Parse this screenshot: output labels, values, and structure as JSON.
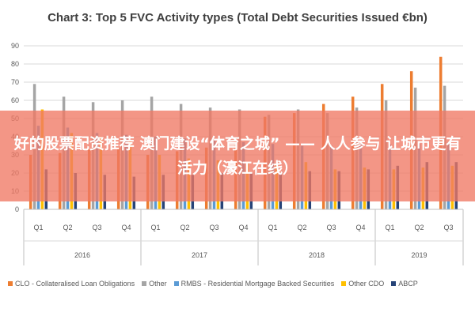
{
  "chart_data": {
    "type": "bar",
    "title": "Chart 3: Top 5 FVC Activity types (Total Debt Securities Issued €bn)",
    "xlabel": "",
    "ylabel": "",
    "ylim": [
      0,
      90
    ],
    "yticks": [
      0,
      10,
      20,
      30,
      40,
      50,
      60,
      70,
      80,
      90
    ],
    "grid": true,
    "legend_position": "bottom",
    "categories": [
      "Q1",
      "Q2",
      "Q3",
      "Q4",
      "Q1",
      "Q2",
      "Q3",
      "Q4",
      "Q1",
      "Q2",
      "Q3",
      "Q4",
      "Q1",
      "Q2",
      "Q3"
    ],
    "groups": [
      {
        "label": "2016",
        "span": 4
      },
      {
        "label": "2017",
        "span": 4
      },
      {
        "label": "2018",
        "span": 4
      },
      {
        "label": "2019",
        "span": 3
      }
    ],
    "series": [
      {
        "name": "CLO - Collateralised Loan Obligations",
        "color": "#ED7D31",
        "values": [
          30,
          31,
          33,
          34,
          30,
          32,
          34,
          35,
          51,
          53,
          58,
          62,
          69,
          76,
          84
        ]
      },
      {
        "name": "Other",
        "color": "#A5A5A5",
        "values": [
          69,
          62,
          59,
          60,
          62,
          58,
          56,
          55,
          52,
          55,
          53,
          56,
          60,
          67,
          68
        ]
      },
      {
        "name": "RMBS - Residential Mortgage Backed Securities",
        "color": "#5B9BD5",
        "values": [
          46,
          45,
          42,
          41,
          40,
          39,
          38,
          37,
          36,
          35,
          35,
          36,
          36,
          36,
          37
        ]
      },
      {
        "name": "Other CDO",
        "color": "#FFC000",
        "values": [
          55,
          42,
          40,
          38,
          30,
          28,
          27,
          26,
          25,
          26,
          22,
          23,
          22,
          23,
          24
        ]
      },
      {
        "name": "ABCP",
        "color": "#264478",
        "values": [
          22,
          20,
          19,
          18,
          19,
          19,
          20,
          20,
          20,
          21,
          21,
          22,
          24,
          26,
          26
        ]
      }
    ]
  },
  "overlay": {
    "banner_text": "好的股票配资推荐 澳门建设“体育之城” —— 人人参与 让城市更有活力（濠江在线）"
  }
}
